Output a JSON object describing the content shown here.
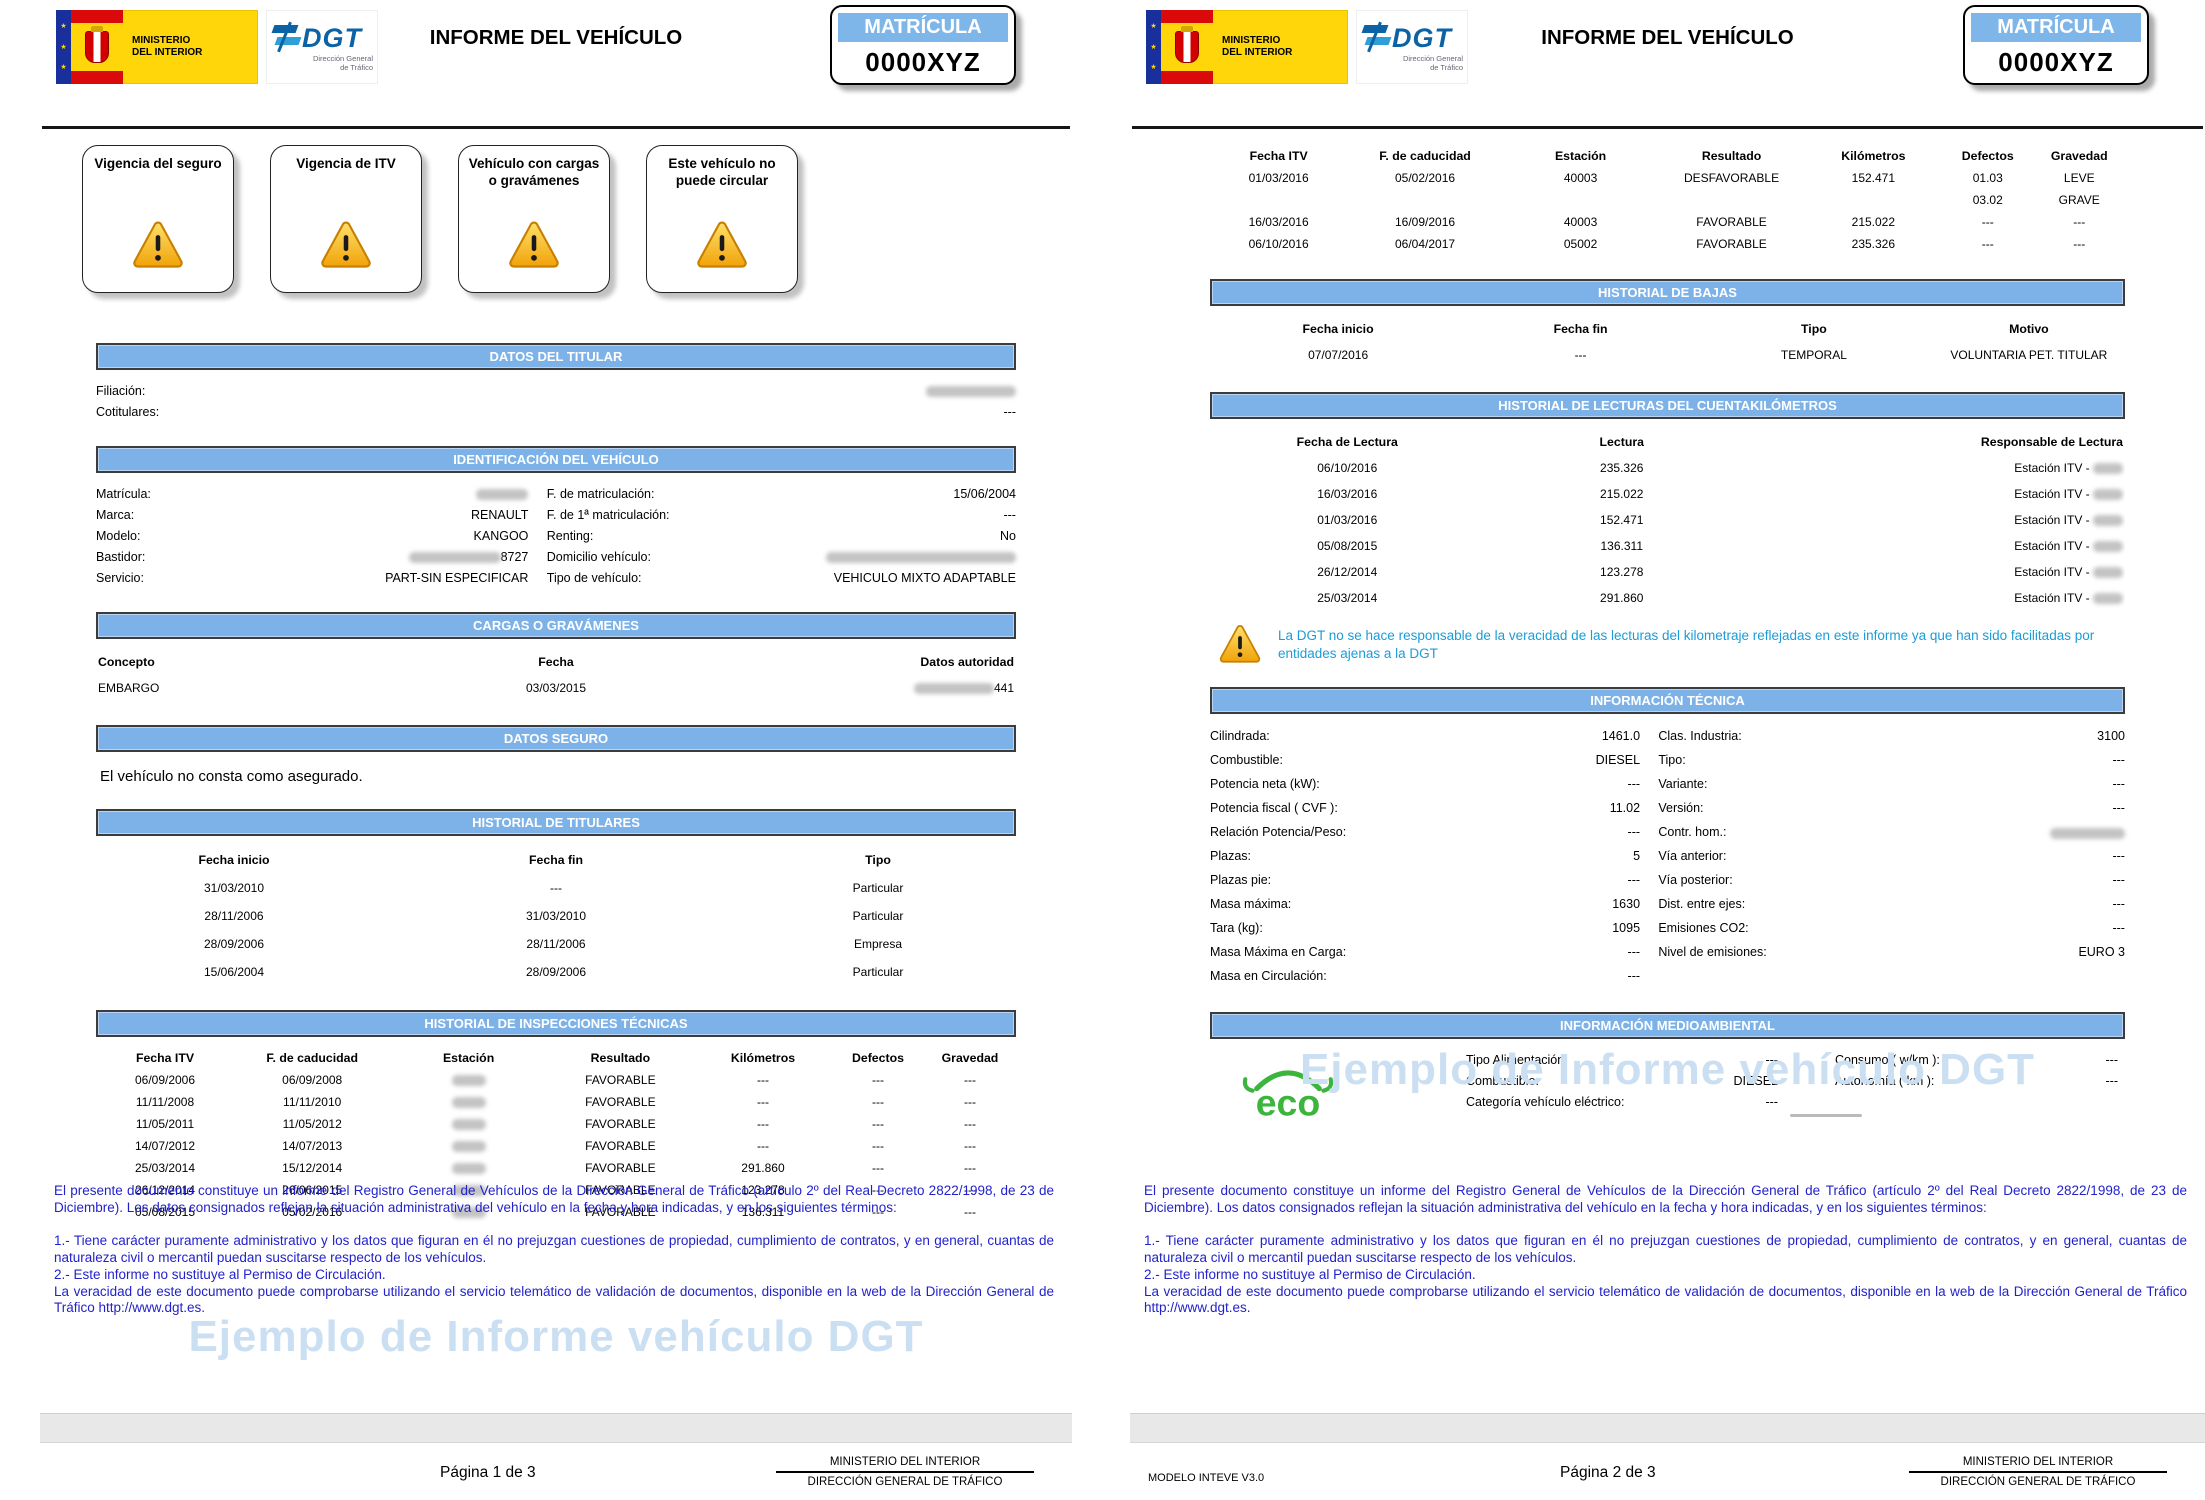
{
  "colors": {
    "section_bar": "#7db2e8",
    "plate_header": "#7fb6ea",
    "legal_text": "#2222cc",
    "note_text": "#1b9cd8",
    "watermark": "#cbdff2",
    "warning_yellow": "#f0a30a",
    "eco_green": "#3cb53c",
    "dgt_blue": "#0b62a4",
    "ministry_yellow": "#ffd60a"
  },
  "header": {
    "ministry_line1": "MINISTERIO",
    "ministry_line2": "DEL INTERIOR",
    "dgt_acronym": "DGT",
    "dgt_sub1": "Dirección General",
    "dgt_sub2": "de Tráfico",
    "title": "INFORME DEL VEHÍCULO",
    "plate_label": "MATRÍCULA",
    "plate_value": "0000XYZ"
  },
  "warnings": [
    "Vigencia del seguro",
    "Vigencia de ITV",
    "Vehículo con cargas o gravámenes",
    "Este vehículo no puede circular"
  ],
  "p1": {
    "titular": {
      "title": "DATOS DEL TITULAR",
      "fields": [
        [
          "Filiación:",
          {
            "blur": 90
          }
        ],
        [
          "Cotitulares:",
          "---"
        ]
      ]
    },
    "identificacion": {
      "title": "IDENTIFICACIÓN DEL VEHÍCULO",
      "left": [
        [
          "Matrícula:",
          {
            "blur": 52
          }
        ],
        [
          "Marca:",
          "RENAULT"
        ],
        [
          "Modelo:",
          "KANGOO"
        ],
        [
          "Bastidor:",
          {
            "blur": 92,
            "post": "8727"
          }
        ],
        [
          "Servicio:",
          "PART-SIN ESPECIFICAR"
        ]
      ],
      "right": [
        [
          "F. de matriculación:",
          "15/06/2004"
        ],
        [
          "F. de 1ª matriculación:",
          "---"
        ],
        [
          "Renting:",
          "No"
        ],
        [
          "Domicilio vehículo:",
          {
            "blur": 190
          }
        ],
        [
          "Tipo de vehículo:",
          "VEHICULO MIXTO ADAPTABLE"
        ]
      ]
    },
    "cargas": {
      "title": "CARGAS O GRAVÁMENES",
      "table": {
        "widths": [
          30,
          40,
          30
        ],
        "aligns": [
          "left",
          "center",
          "right"
        ],
        "headers": [
          "Concepto",
          "Fecha",
          "Datos autoridad"
        ],
        "rows": [
          [
            "EMBARGO",
            "03/03/2015",
            {
              "blur": 80,
              "post": "441"
            }
          ]
        ]
      }
    },
    "seguro": {
      "title": "DATOS SEGURO",
      "text": "El vehículo no consta como asegurado."
    },
    "titulares": {
      "title": "HISTORIAL DE TITULARES",
      "table": {
        "widths": [
          30,
          40,
          30
        ],
        "headers": [
          "Fecha inicio",
          "Fecha fin",
          "Tipo"
        ],
        "rows": [
          [
            "31/03/2010",
            "---",
            "Particular"
          ],
          [
            "28/11/2006",
            "31/03/2010",
            "Particular"
          ],
          [
            "28/09/2006",
            "28/11/2006",
            "Empresa"
          ],
          [
            "15/06/2004",
            "28/09/2006",
            "Particular"
          ]
        ]
      }
    },
    "inspecciones": {
      "title": "HISTORIAL DE INSPECCIONES TÉCNICAS",
      "table": {
        "widths": [
          15,
          17,
          17,
          16,
          15,
          10,
          10
        ],
        "headers": [
          "Fecha ITV",
          "F. de caducidad",
          "Estación",
          "Resultado",
          "Kilómetros",
          "Defectos",
          "Gravedad"
        ],
        "rows": [
          [
            "06/09/2006",
            "06/09/2008",
            {
              "blur": 34
            },
            "FAVORABLE",
            "---",
            "---",
            "---"
          ],
          [
            "11/11/2008",
            "11/11/2010",
            {
              "blur": 34
            },
            "FAVORABLE",
            "---",
            "---",
            "---"
          ],
          [
            "11/05/2011",
            "11/05/2012",
            {
              "blur": 34
            },
            "FAVORABLE",
            "---",
            "---",
            "---"
          ],
          [
            "14/07/2012",
            "14/07/2013",
            {
              "blur": 34
            },
            "FAVORABLE",
            "---",
            "---",
            "---"
          ],
          [
            "25/03/2014",
            "15/12/2014",
            {
              "blur": 34
            },
            "FAVORABLE",
            "291.860",
            "---",
            "---"
          ],
          [
            "26/12/2014",
            "26/06/2015",
            {
              "blur": 34
            },
            "FAVORABLE",
            "123.278",
            "---",
            "---"
          ],
          [
            "05/08/2015",
            "05/02/2016",
            {
              "blur": 34
            },
            "FAVORABLE",
            "136.311",
            "---",
            "---"
          ]
        ]
      }
    }
  },
  "p2": {
    "itv": {
      "table": {
        "widths": [
          15,
          17,
          17,
          16,
          15,
          10,
          10
        ],
        "headers": [
          "Fecha ITV",
          "F. de caducidad",
          "Estación",
          "Resultado",
          "Kilómetros",
          "Defectos",
          "Gravedad"
        ],
        "rows": [
          [
            "01/03/2016",
            "05/02/2016",
            "40003",
            "DESFAVORABLE",
            "152.471",
            "01.03",
            "LEVE"
          ],
          [
            "",
            "",
            "",
            "",
            "",
            "03.02",
            "GRAVE"
          ],
          [
            "16/03/2016",
            "16/09/2016",
            "40003",
            "FAVORABLE",
            "215.022",
            "---",
            "---"
          ],
          [
            "06/10/2016",
            "06/04/2017",
            "05002",
            "FAVORABLE",
            "235.326",
            "---",
            "---"
          ]
        ]
      }
    },
    "bajas": {
      "title": "HISTORIAL DE BAJAS",
      "table": {
        "widths": [
          28,
          25,
          26,
          21
        ],
        "headers": [
          "Fecha inicio",
          "Fecha fin",
          "Tipo",
          "Motivo"
        ],
        "rows": [
          [
            "07/07/2016",
            "---",
            "TEMPORAL",
            "VOLUNTARIA PET. TITULAR"
          ]
        ]
      }
    },
    "lecturas": {
      "title": "HISTORIAL DE LECTURAS DEL CUENTAKILÓMETROS",
      "table": {
        "widths": [
          30,
          30,
          40
        ],
        "aligns": [
          "center",
          "center",
          "right"
        ],
        "headers": [
          "Fecha de Lectura",
          "Lectura",
          "Responsable de Lectura"
        ],
        "rows": [
          [
            "06/10/2016",
            "235.326",
            {
              "pre": "Estación ITV - ",
              "blur": 30
            }
          ],
          [
            "16/03/2016",
            "215.022",
            {
              "pre": "Estación ITV - ",
              "blur": 30
            }
          ],
          [
            "01/03/2016",
            "152.471",
            {
              "pre": "Estación ITV - ",
              "blur": 30
            }
          ],
          [
            "05/08/2015",
            "136.311",
            {
              "pre": "Estación ITV - ",
              "blur": 30
            }
          ],
          [
            "26/12/2014",
            "123.278",
            {
              "pre": "Estación ITV - ",
              "blur": 30
            }
          ],
          [
            "25/03/2014",
            "291.860",
            {
              "pre": "Estación ITV - ",
              "blur": 30
            }
          ]
        ]
      },
      "note": "La DGT no se hace responsable de la veracidad de las lecturas del kilometraje reflejadas en este informe ya que han sido facilitadas por entidades ajenas a la DGT"
    },
    "tecnica": {
      "title": "INFORMACIÓN TÉCNICA",
      "left": [
        [
          "Cilindrada:",
          "1461.0"
        ],
        [
          "Combustible:",
          "DIESEL"
        ],
        [
          "Potencia neta (kW):",
          "---"
        ],
        [
          "Potencia fiscal ( CVF ):",
          "11.02"
        ],
        [
          "Relación Potencia/Peso:",
          "---"
        ],
        [
          "Plazas:",
          "5"
        ],
        [
          "Plazas pie:",
          "---"
        ],
        [
          "Masa máxima:",
          "1630"
        ],
        [
          "Tara (kg):",
          "1095"
        ],
        [
          "Masa Máxima en Carga:",
          "---"
        ],
        [
          "Masa en Circulación:",
          "---"
        ]
      ],
      "right": [
        [
          "Clas. Industria:",
          "3100"
        ],
        [
          "Tipo:",
          "---"
        ],
        [
          "Variante:",
          "---"
        ],
        [
          "Versión:",
          "---"
        ],
        [
          "Contr. hom.:",
          {
            "blur": 75
          }
        ],
        [
          "Vía anterior:",
          "---"
        ],
        [
          "Vía posterior:",
          "---"
        ],
        [
          "Dist. entre ejes:",
          "---"
        ],
        [
          "Emisiones CO2:",
          "---"
        ],
        [
          "Nivel de emisiones:",
          "EURO 3"
        ]
      ]
    },
    "medio": {
      "title": "INFORMACIÓN MEDIOAMBIENTAL",
      "eco_label": "eco",
      "col1": [
        [
          "Tipo Alimentación:",
          "---"
        ],
        [
          "Combustible:",
          "DIESEL"
        ],
        [
          "Categoría vehículo eléctrico:",
          "---"
        ]
      ],
      "col2": [
        [
          "Consumo ( w/km ):",
          "---"
        ],
        [
          "Autonomía ( km ):",
          "---"
        ]
      ]
    }
  },
  "legal": [
    "El presente documento constituye un informe del Registro General de Vehículos de la Dirección General de Tráfico (artículo 2º del Real Decreto 2822/1998, de 23 de Diciembre). Los datos consignados reflejan la situación administrativa del vehículo en la fecha y hora indicadas, y en los siguientes términos:",
    "1.- Tiene carácter puramente administrativo y los datos que figuran en él no prejuzgan cuestiones de propiedad, cumplimiento de contratos, y en general, cuantas de naturaleza civil o mercantil puedan suscitarse respecto de los vehículos.",
    "2.- Este informe no sustituye al Permiso de Circulación.",
    "La veracidad de este documento puede comprobarse utilizando el servicio telemático de validación de documentos, disponible en la web de la Dirección General de Tráfico http://www.dgt.es."
  ],
  "watermark": "Ejemplo de Informe vehículo DGT",
  "footer": {
    "page1": "Página 1 de 3",
    "page2": "Página 2 de 3",
    "model": "MODELO INTEVE V3.0",
    "ministry_top": "MINISTERIO DEL INTERIOR",
    "ministry_bottom": "DIRECCIÓN GENERAL DE TRÁFICO"
  }
}
